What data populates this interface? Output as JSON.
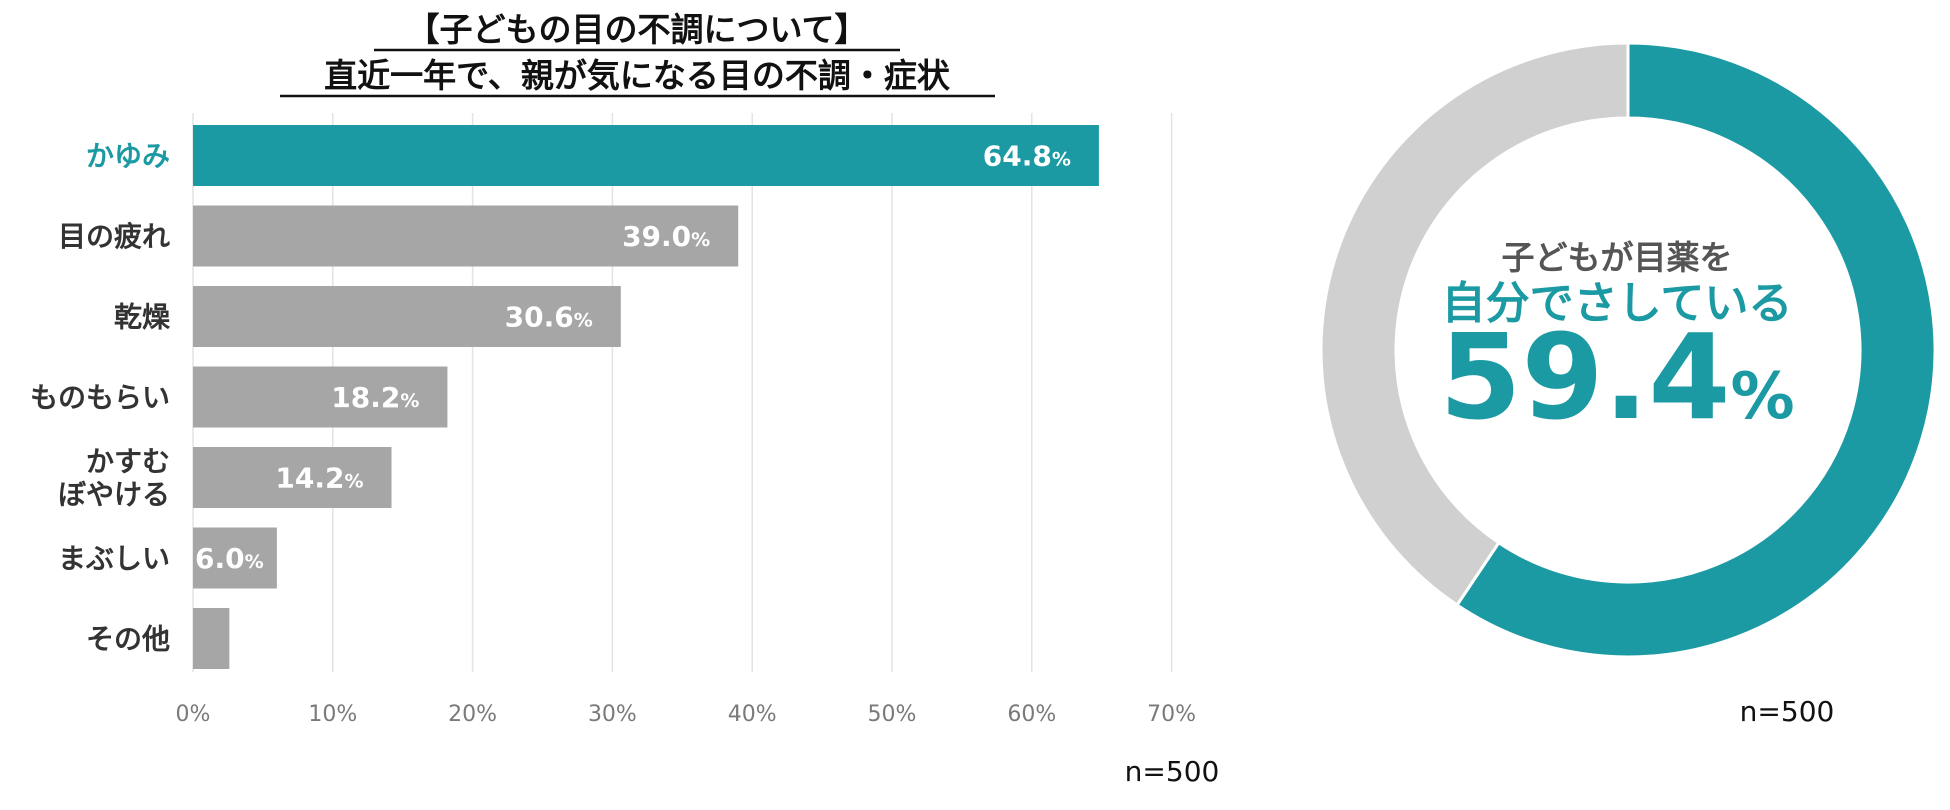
{
  "colors": {
    "highlight": "#1c9aa3",
    "bar_default": "#a6a6a6",
    "donut_rest": "#d1d0d0",
    "gridline": "#e3e3e3",
    "axis_text": "#7a7a7a",
    "label_text": "#333333"
  },
  "chart_data": [
    {
      "type": "bar",
      "orientation": "horizontal",
      "title": "【子どもの目の不調について】",
      "subtitle": "直近一年で、親が気になる目の不調・症状",
      "categories": [
        [
          "かゆみ"
        ],
        [
          "目の疲れ"
        ],
        [
          "乾燥"
        ],
        [
          "ものもらい"
        ],
        [
          "かすむ",
          "ぼやける"
        ],
        [
          "まぶしい"
        ],
        [
          "その他"
        ]
      ],
      "values": [
        64.8,
        39.0,
        30.6,
        18.2,
        14.2,
        6.0,
        2.6
      ],
      "value_labels": [
        "64.8",
        "39.0",
        "30.6",
        "18.2",
        "14.2",
        "6.0",
        ""
      ],
      "value_unit": "%",
      "highlight_index": 0,
      "xlim": [
        0,
        70
      ],
      "x_ticks": [
        0,
        10,
        20,
        30,
        40,
        50,
        60,
        70
      ],
      "x_tick_labels": [
        "0%",
        "10%",
        "20%",
        "30%",
        "40%",
        "50%",
        "60%",
        "70%"
      ],
      "xlabel": "",
      "ylabel": "",
      "grid": true,
      "note": "n=500"
    },
    {
      "type": "pie",
      "style": "donut",
      "slices": [
        {
          "value": 59.4,
          "color": "#1c9aa3"
        },
        {
          "value": 40.6,
          "color": "#d1d0d0"
        }
      ],
      "center_text": {
        "line1": "子どもが目薬を",
        "line2": "自分でさしている",
        "value": "59.4",
        "unit": "%"
      },
      "note": "n=500"
    }
  ]
}
